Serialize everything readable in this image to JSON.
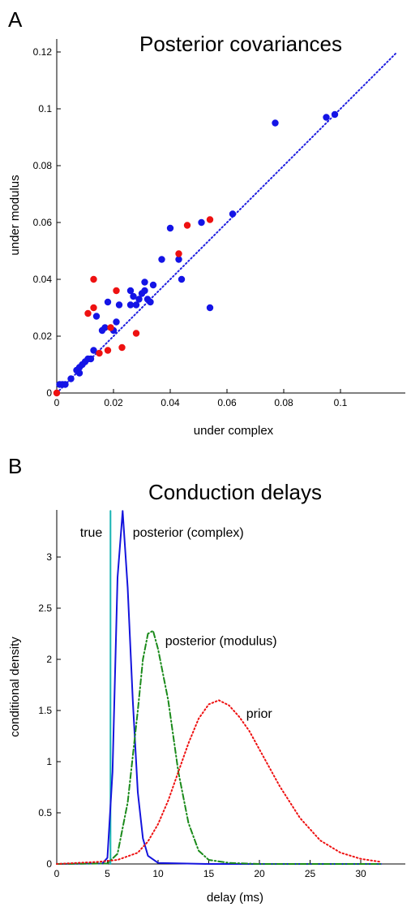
{
  "chart_data": [
    {
      "type": "scatter",
      "panel": "A",
      "title": "Posterior covariances",
      "xlabel": "under complex",
      "ylabel": "under modulus",
      "xlim": [
        0,
        0.125
      ],
      "ylim": [
        0,
        0.125
      ],
      "xticks": [
        0,
        0.02,
        0.04,
        0.06,
        0.08,
        0.1
      ],
      "xtick_labels": [
        "0",
        "0.02",
        "0.04",
        "0.06",
        "0.08",
        "0.1"
      ],
      "yticks": [
        0,
        0.02,
        0.04,
        0.06,
        0.08,
        0.1,
        0.12
      ],
      "ytick_labels": [
        "0",
        "0.02",
        "0.04",
        "0.06",
        "0.08",
        "0.1",
        "0.12"
      ],
      "grid": false,
      "identity_line": {
        "color": "#1f1fe0",
        "style": "dotted"
      },
      "series": [
        {
          "color": "#1414e6",
          "points": [
            [
              0.001,
              0.003
            ],
            [
              0.002,
              0.003
            ],
            [
              0.003,
              0.003
            ],
            [
              0.005,
              0.005
            ],
            [
              0.007,
              0.008
            ],
            [
              0.008,
              0.009
            ],
            [
              0.008,
              0.007
            ],
            [
              0.009,
              0.01
            ],
            [
              0.01,
              0.011
            ],
            [
              0.011,
              0.012
            ],
            [
              0.012,
              0.012
            ],
            [
              0.013,
              0.015
            ],
            [
              0.014,
              0.027
            ],
            [
              0.016,
              0.022
            ],
            [
              0.017,
              0.023
            ],
            [
              0.018,
              0.032
            ],
            [
              0.02,
              0.022
            ],
            [
              0.021,
              0.025
            ],
            [
              0.022,
              0.031
            ],
            [
              0.026,
              0.036
            ],
            [
              0.026,
              0.031
            ],
            [
              0.027,
              0.034
            ],
            [
              0.028,
              0.031
            ],
            [
              0.029,
              0.033
            ],
            [
              0.03,
              0.035
            ],
            [
              0.031,
              0.039
            ],
            [
              0.031,
              0.036
            ],
            [
              0.032,
              0.033
            ],
            [
              0.033,
              0.032
            ],
            [
              0.034,
              0.038
            ],
            [
              0.037,
              0.047
            ],
            [
              0.04,
              0.058
            ],
            [
              0.043,
              0.047
            ],
            [
              0.044,
              0.04
            ],
            [
              0.051,
              0.06
            ],
            [
              0.054,
              0.03
            ],
            [
              0.062,
              0.063
            ],
            [
              0.077,
              0.095
            ],
            [
              0.095,
              0.097
            ],
            [
              0.098,
              0.098
            ]
          ]
        },
        {
          "color": "#ee1111",
          "points": [
            [
              0.0,
              0.0
            ],
            [
              0.011,
              0.028
            ],
            [
              0.013,
              0.04
            ],
            [
              0.013,
              0.03
            ],
            [
              0.015,
              0.014
            ],
            [
              0.018,
              0.015
            ],
            [
              0.019,
              0.023
            ],
            [
              0.021,
              0.036
            ],
            [
              0.023,
              0.016
            ],
            [
              0.028,
              0.021
            ],
            [
              0.043,
              0.049
            ],
            [
              0.046,
              0.059
            ],
            [
              0.054,
              0.061
            ]
          ]
        }
      ]
    },
    {
      "type": "line",
      "panel": "B",
      "title": "Conduction delays",
      "xlabel": "delay (ms)",
      "ylabel": "conditional density",
      "xlim": [
        0,
        35
      ],
      "ylim": [
        0,
        3.45
      ],
      "xticks": [
        0,
        5,
        10,
        15,
        20,
        25,
        30
      ],
      "xtick_labels": [
        "0",
        "5",
        "10",
        "15",
        "20",
        "25",
        "30"
      ],
      "yticks": [
        0,
        0.5,
        1,
        1.5,
        2,
        2.5,
        3
      ],
      "ytick_labels": [
        "0",
        "0.5",
        "1",
        "1.5",
        "2",
        "2.5",
        "3"
      ],
      "grid": false,
      "series": [
        {
          "name": "true",
          "color": "#17b3b3",
          "style": "solid",
          "x": [
            5.3,
            5.3
          ],
          "y": [
            0,
            3.45
          ]
        },
        {
          "name": "posterior (complex)",
          "color": "#1414dd",
          "style": "solid",
          "x": [
            0,
            4.5,
            5.0,
            5.5,
            6.0,
            6.5,
            7.0,
            7.5,
            8.0,
            8.5,
            9.0,
            10.0,
            15.0,
            20.0,
            25.0,
            32.0
          ],
          "y": [
            0,
            0.005,
            0.06,
            0.9,
            2.8,
            3.45,
            2.7,
            1.6,
            0.7,
            0.25,
            0.08,
            0.01,
            0.0,
            0.0,
            0.0,
            0.0
          ]
        },
        {
          "name": "posterior (modulus)",
          "color": "#1a8a1a",
          "style": "dashdot",
          "x": [
            0,
            5.0,
            6.0,
            7.0,
            8.0,
            8.5,
            9.0,
            9.5,
            10.0,
            11.0,
            12.0,
            13.0,
            14.0,
            15.0,
            17.0,
            20.0,
            25.0,
            32.0
          ],
          "y": [
            0,
            0.005,
            0.1,
            0.6,
            1.5,
            2.0,
            2.25,
            2.28,
            2.1,
            1.6,
            0.9,
            0.4,
            0.13,
            0.04,
            0.01,
            0.0,
            0.0,
            0.0
          ]
        },
        {
          "name": "prior",
          "color": "#ee1111",
          "style": "dotted",
          "x": [
            0,
            2,
            4,
            6,
            8,
            9,
            10,
            11,
            12,
            13,
            14,
            15,
            16,
            17,
            18,
            19,
            20,
            22,
            24,
            26,
            28,
            30,
            32
          ],
          "y": [
            0,
            0.01,
            0.02,
            0.04,
            0.11,
            0.22,
            0.39,
            0.62,
            0.9,
            1.18,
            1.42,
            1.56,
            1.6,
            1.55,
            1.44,
            1.3,
            1.12,
            0.76,
            0.45,
            0.23,
            0.11,
            0.05,
            0.02
          ]
        }
      ],
      "annotations": [
        "true",
        "posterior (complex)",
        "posterior (modulus)",
        "prior"
      ]
    }
  ]
}
